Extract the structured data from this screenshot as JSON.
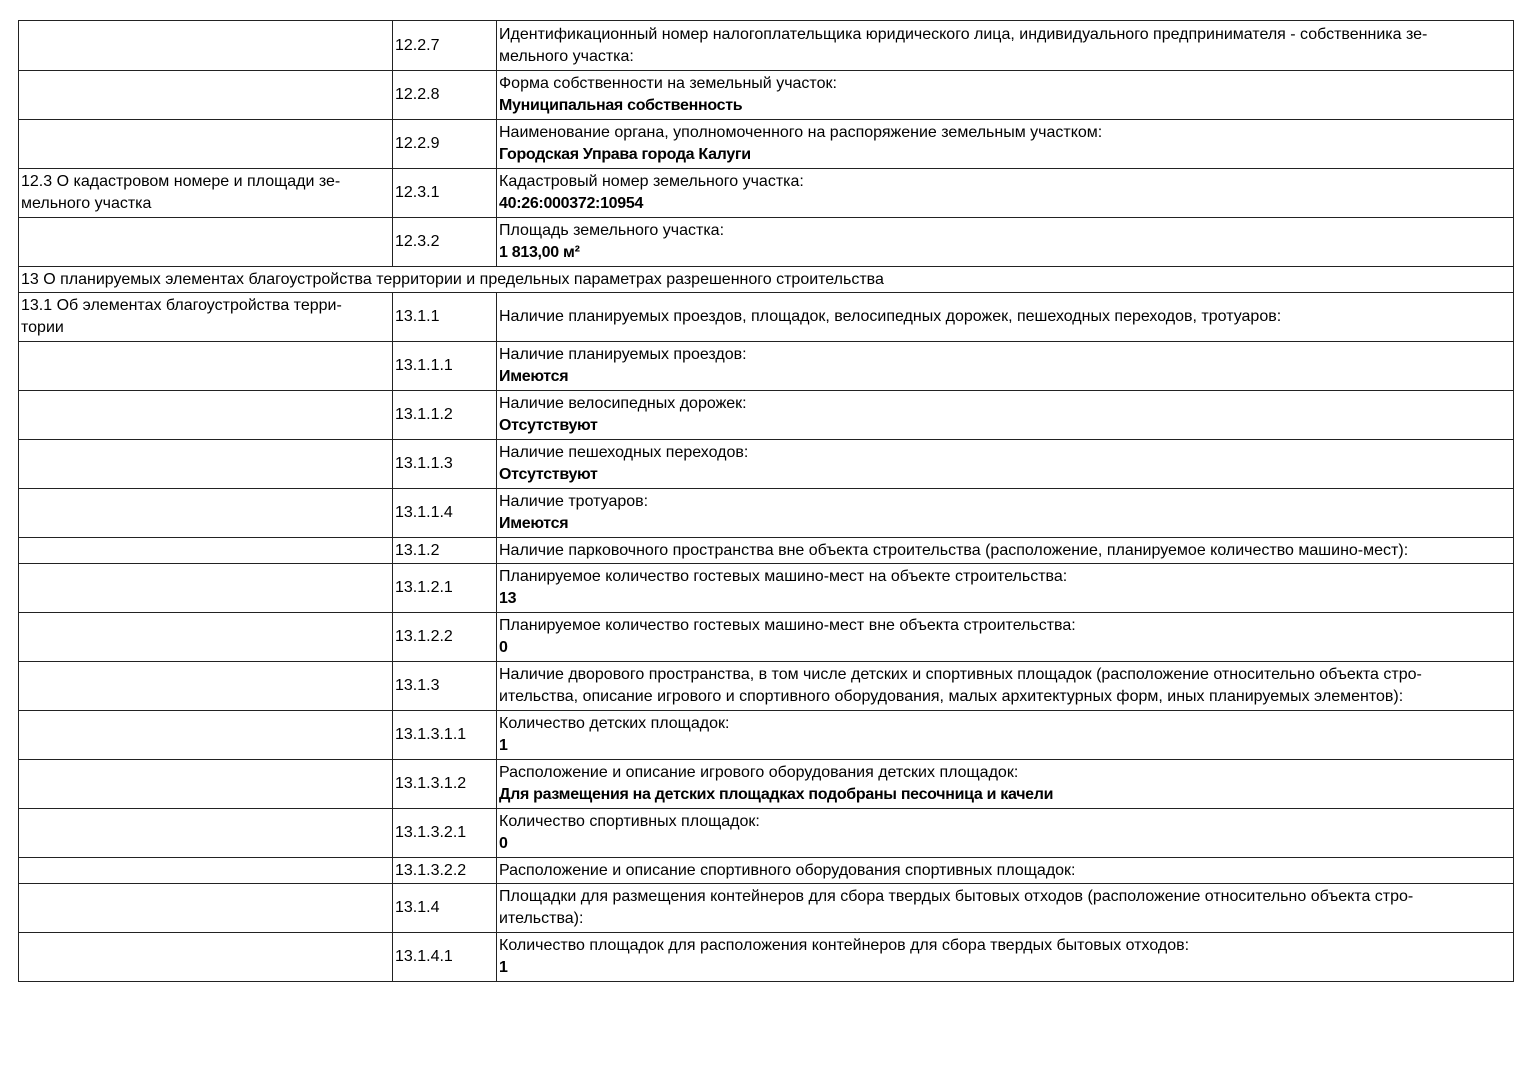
{
  "rows": [
    {
      "section": [],
      "code": "12.2.7",
      "label": [
        "Идентификационный номер налогоплательщика юридического лица, индивидуального предпринимателя - собственника зе-",
        "мельного участка:"
      ],
      "value": ""
    },
    {
      "section": [],
      "code": "12.2.8",
      "label": [
        "Форма собственности на земельный участок:"
      ],
      "value": "Муниципальная собственность"
    },
    {
      "section": [],
      "code": "12.2.9",
      "label": [
        "Наименование органа, уполномоченного на распоряжение земельным участком:"
      ],
      "value": "Городская Управа города Калуги"
    },
    {
      "section": [
        "12.3 О кадастровом номере и площади зе-",
        "мельного участка"
      ],
      "code": "12.3.1",
      "label": [
        "Кадастровый номер земельного участка:"
      ],
      "value": "40:26:000372:10954"
    },
    {
      "section": [],
      "code": "12.3.2",
      "label": [
        "Площадь земельного участка:"
      ],
      "value": "1 813,00 м²"
    },
    {
      "full": "13 О планируемых элементах благоустройства территории и предельных параметрах разрешенного строительства"
    },
    {
      "section": [
        "13.1 Об элементах благоустройства терри-",
        "тории"
      ],
      "code": "13.1.1",
      "label": [
        "Наличие планируемых проездов, площадок, велосипедных дорожек, пешеходных переходов, тротуаров:"
      ],
      "value": ""
    },
    {
      "section": [],
      "code": "13.1.1.1",
      "label": [
        "Наличие планируемых проездов:"
      ],
      "value": "Имеются"
    },
    {
      "section": [],
      "code": "13.1.1.2",
      "label": [
        "Наличие велосипедных дорожек:"
      ],
      "value": "Отсутствуют"
    },
    {
      "section": [],
      "code": "13.1.1.3",
      "label": [
        "Наличие пешеходных переходов:"
      ],
      "value": "Отсутствуют"
    },
    {
      "section": [],
      "code": "13.1.1.4",
      "label": [
        "Наличие тротуаров:"
      ],
      "value": "Имеются"
    },
    {
      "section": [],
      "code": "13.1.2",
      "label": [
        "Наличие парковочного пространства вне объекта строительства (расположение, планируемое количество машино-мест):"
      ],
      "value": ""
    },
    {
      "section": [],
      "code": "13.1.2.1",
      "label": [
        "Планируемое количество гостевых машино-мест на объекте строительства:"
      ],
      "value": "13"
    },
    {
      "section": [],
      "code": "13.1.2.2",
      "label": [
        "Планируемое количество гостевых машино-мест вне объекта строительства:"
      ],
      "value": "0"
    },
    {
      "section": [],
      "code": "13.1.3",
      "label": [
        "Наличие дворового пространства, в том числе детских и спортивных площадок (расположение относительно объекта стро-",
        "ительства, описание игрового и спортивного оборудования, малых архитектурных форм, иных планируемых элементов):"
      ],
      "value": ""
    },
    {
      "section": [],
      "code": "13.1.3.1.1",
      "label": [
        "Количество детских площадок:"
      ],
      "value": "1"
    },
    {
      "section": [],
      "code": "13.1.3.1.2",
      "label": [
        "Расположение и описание игрового оборудования детских площадок:"
      ],
      "value": "Для размещения на детских площадках подобраны песочница и качели"
    },
    {
      "section": [],
      "code": "13.1.3.2.1",
      "label": [
        "Количество спортивных площадок:"
      ],
      "value": "0"
    },
    {
      "section": [],
      "code": "13.1.3.2.2",
      "label": [
        "Расположение и описание спортивного оборудования спортивных площадок:"
      ],
      "value": ""
    },
    {
      "section": [],
      "code": "13.1.4",
      "label": [
        "Площадки для размещения контейнеров для сбора твердых бытовых отходов (расположение относительно объекта стро-",
        "ительства):"
      ],
      "value": ""
    },
    {
      "section": [],
      "code": "13.1.4.1",
      "label": [
        "Количество площадок для расположения контейнеров для сбора твердых бытовых отходов:"
      ],
      "value": "1"
    }
  ]
}
